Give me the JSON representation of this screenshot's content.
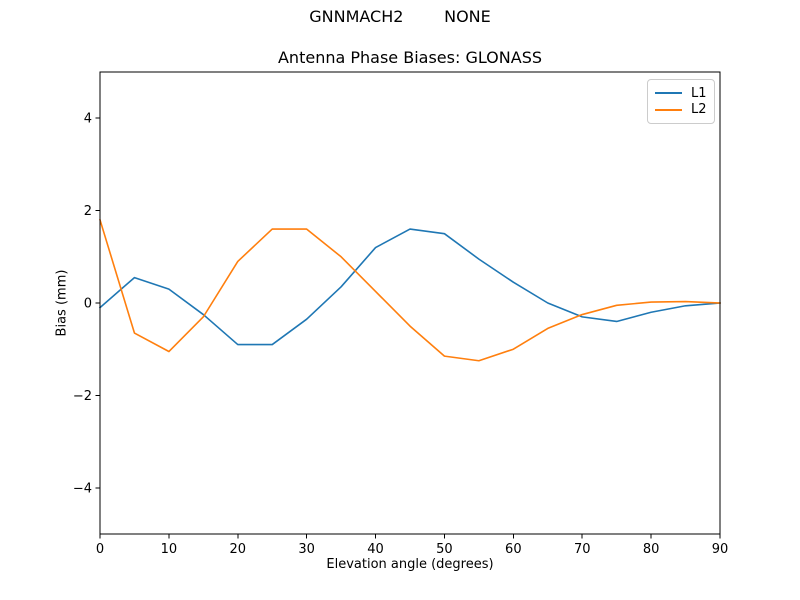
{
  "figure": {
    "suptitle": "GNNMACH2        NONE"
  },
  "chart_data": {
    "type": "line",
    "title": "Antenna Phase Biases: GLONASS",
    "xlabel": "Elevation angle (degrees)",
    "ylabel": "Bias (mm)",
    "xlim": [
      0,
      90
    ],
    "ylim": [
      -5,
      5
    ],
    "x_ticks": [
      0,
      10,
      20,
      30,
      40,
      50,
      60,
      70,
      80,
      90
    ],
    "y_ticks": [
      -4,
      -2,
      0,
      2,
      4
    ],
    "y_tick_labels": [
      "−4",
      "−2",
      "0",
      "2",
      "4"
    ],
    "grid": false,
    "legend_position": "upper right",
    "x": [
      0,
      5,
      10,
      15,
      20,
      25,
      30,
      35,
      40,
      45,
      50,
      55,
      60,
      65,
      70,
      75,
      80,
      85,
      90
    ],
    "series": [
      {
        "name": "L1",
        "color": "#1f77b4",
        "values": [
          -0.1,
          0.55,
          0.3,
          -0.25,
          -0.9,
          -0.9,
          -0.35,
          0.35,
          1.2,
          1.6,
          1.5,
          0.95,
          0.45,
          0.0,
          -0.3,
          -0.4,
          -0.2,
          -0.06,
          0.0
        ]
      },
      {
        "name": "L2",
        "color": "#ff7f0e",
        "values": [
          1.8,
          -0.65,
          -1.05,
          -0.3,
          0.9,
          1.6,
          1.6,
          1.0,
          0.25,
          -0.5,
          -1.15,
          -1.25,
          -1.0,
          -0.55,
          -0.25,
          -0.05,
          0.02,
          0.03,
          0.0
        ]
      }
    ]
  }
}
